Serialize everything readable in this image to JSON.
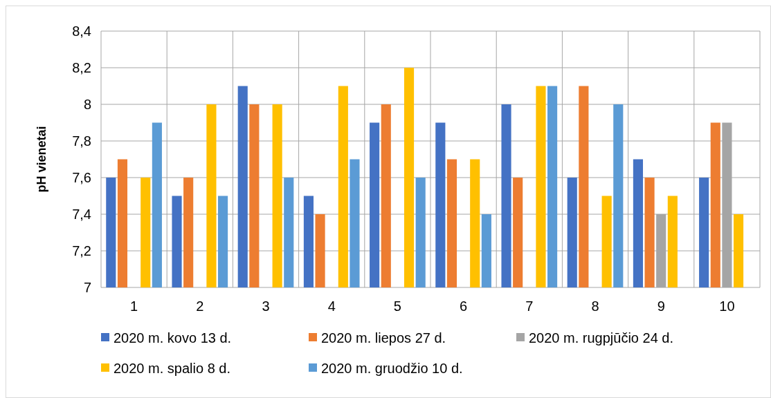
{
  "chart_data": {
    "type": "bar",
    "ylabel": "pH vienetai",
    "categories": [
      "1",
      "2",
      "3",
      "4",
      "5",
      "6",
      "7",
      "8",
      "9",
      "10"
    ],
    "series": [
      {
        "name": "2020 m. kovo 13 d.",
        "color": "#4472c4",
        "values": [
          7.6,
          7.5,
          8.1,
          7.5,
          7.9,
          7.9,
          8.0,
          7.6,
          7.7,
          7.6
        ]
      },
      {
        "name": "2020 m. liepos 27 d.",
        "color": "#ed7d31",
        "values": [
          7.7,
          7.6,
          8.0,
          7.4,
          8.0,
          7.7,
          7.6,
          8.1,
          7.6,
          7.9
        ]
      },
      {
        "name": "2020 m. rugpjūčio 24 d.",
        "color": "#a5a5a5",
        "values": [
          null,
          null,
          null,
          null,
          null,
          null,
          null,
          null,
          7.4,
          7.9
        ]
      },
      {
        "name": "2020 m. spalio 8 d.",
        "color": "#ffc000",
        "values": [
          7.6,
          8.0,
          8.0,
          8.1,
          8.2,
          7.7,
          8.1,
          7.5,
          7.5,
          7.4
        ]
      },
      {
        "name": "2020 m. gruodžio 10 d.",
        "color": "#5b9bd5",
        "values": [
          7.9,
          7.5,
          7.6,
          7.7,
          7.6,
          7.4,
          8.1,
          8.0,
          null,
          null
        ]
      }
    ],
    "ylim": [
      7,
      8.4
    ],
    "yticks": [
      {
        "value": 7,
        "label": "7"
      },
      {
        "value": 7.2,
        "label": "7,2"
      },
      {
        "value": 7.4,
        "label": "7,4"
      },
      {
        "value": 7.6,
        "label": "7,6"
      },
      {
        "value": 7.8,
        "label": "7,8"
      },
      {
        "value": 8,
        "label": "8"
      },
      {
        "value": 8.2,
        "label": "8,2"
      },
      {
        "value": 8.4,
        "label": "8,4"
      }
    ],
    "grid": true,
    "legend": "bottom"
  }
}
